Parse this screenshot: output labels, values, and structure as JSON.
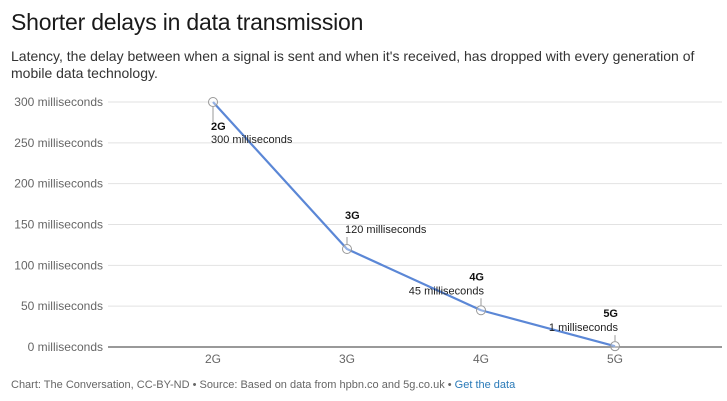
{
  "header": {
    "title": "Shorter delays in data transmission",
    "subtitle": "Latency, the delay between when a signal is sent and when it's received, has dropped with every generation of mobile data technology."
  },
  "footer": {
    "credit": "Chart: The Conversation, CC-BY-ND • Source: Based on data from hpbn.co and 5g.co.uk • ",
    "link_label": "Get the data"
  },
  "chart_data": {
    "type": "line",
    "categories": [
      "2G",
      "3G",
      "4G",
      "5G"
    ],
    "series": [
      {
        "values": [
          300,
          120,
          45,
          1
        ]
      }
    ],
    "ylim": [
      0,
      300
    ],
    "yticks": [
      0,
      50,
      100,
      150,
      200,
      250,
      300
    ],
    "ytick_labels": [
      "0 milliseconds",
      "50 milliseconds",
      "100 milliseconds",
      "150 milliseconds",
      "200 milliseconds",
      "250 milliseconds",
      "300 milliseconds"
    ],
    "annotations": [
      {
        "category": "2G",
        "label": "300 milliseconds"
      },
      {
        "category": "3G",
        "label": "120 milliseconds"
      },
      {
        "category": "4G",
        "label": "45 milliseconds"
      },
      {
        "category": "5G",
        "label": "1 milliseconds"
      }
    ],
    "grid": true,
    "colors": {
      "line": "#5b87d6",
      "grid": "#e2e2e2",
      "axis": "#333333",
      "marker": "#999999"
    }
  }
}
